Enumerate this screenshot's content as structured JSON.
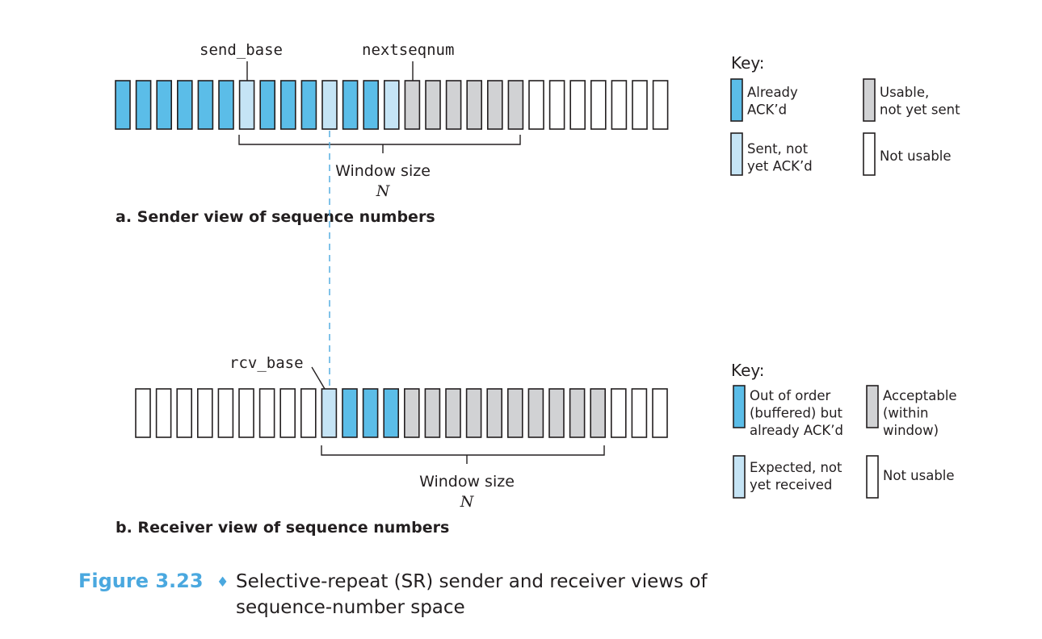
{
  "colors": {
    "acked": "#5bbde8",
    "sent": "#c5e4f5",
    "usable": "#d1d2d4",
    "unusable": "#ffffff",
    "dashed": "#4aa8df",
    "figure_number": "#4aa8df"
  },
  "sender": {
    "states": [
      "acked",
      "acked",
      "acked",
      "acked",
      "acked",
      "acked",
      "sent",
      "acked",
      "acked",
      "acked",
      "sent",
      "acked",
      "acked",
      "sent",
      "usable",
      "usable",
      "usable",
      "usable",
      "usable",
      "usable",
      "unusable",
      "unusable",
      "unusable",
      "unusable",
      "unusable",
      "unusable",
      "unusable"
    ],
    "send_base_label": "send_base",
    "nextseqnum_label": "nextseqnum",
    "window_label": "Window size",
    "window_n": "N",
    "subtitle": "a. Sender view of sequence numbers",
    "key": {
      "title": "Key:",
      "items": [
        {
          "state": "acked",
          "lines": [
            "Already",
            "ACK’d"
          ]
        },
        {
          "state": "usable",
          "lines": [
            "Usable,",
            "not yet sent"
          ]
        },
        {
          "state": "sent",
          "lines": [
            "Sent, not",
            "yet ACK’d"
          ]
        },
        {
          "state": "unusable",
          "lines": [
            "Not usable"
          ]
        }
      ]
    }
  },
  "receiver": {
    "states": [
      "unusable",
      "unusable",
      "unusable",
      "unusable",
      "unusable",
      "unusable",
      "unusable",
      "unusable",
      "unusable",
      "sent",
      "acked",
      "acked",
      "acked",
      "usable",
      "usable",
      "usable",
      "usable",
      "usable",
      "usable",
      "usable",
      "usable",
      "usable",
      "usable",
      "unusable",
      "unusable",
      "unusable"
    ],
    "rcv_base_label": "rcv_base",
    "window_label": "Window size",
    "window_n": "N",
    "subtitle": "b. Receiver view of sequence numbers",
    "key": {
      "title": "Key:",
      "items": [
        {
          "state": "acked",
          "lines": [
            "Out of order",
            "(buffered) but",
            "already ACK’d"
          ]
        },
        {
          "state": "usable",
          "lines": [
            "Acceptable",
            "(within",
            "window)"
          ]
        },
        {
          "state": "sent",
          "lines": [
            "Expected, not",
            "yet received"
          ]
        },
        {
          "state": "unusable",
          "lines": [
            "Not usable"
          ]
        }
      ]
    }
  },
  "figure": {
    "number": "Figure 3.23",
    "bullet": "♦",
    "caption_lines": [
      "Selective-repeat (SR) sender and receiver views of",
      "sequence-number space"
    ]
  }
}
